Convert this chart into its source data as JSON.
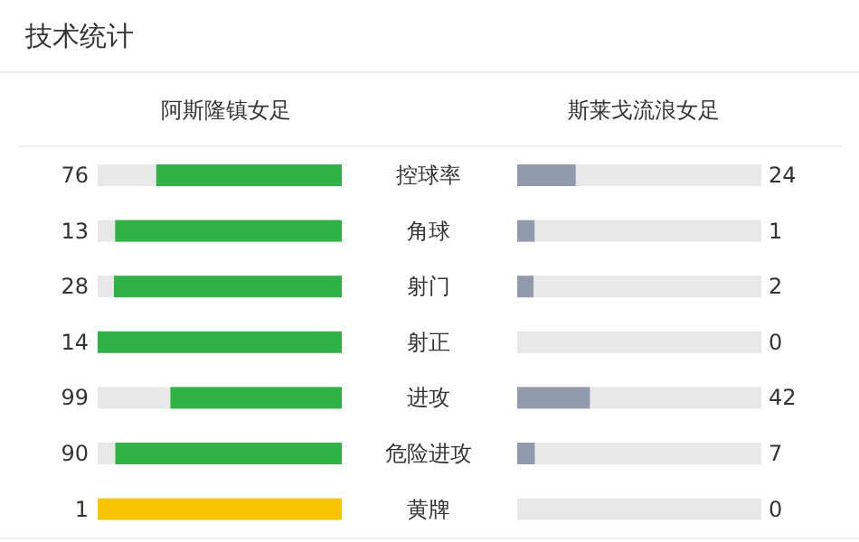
{
  "chart_data": {
    "type": "other",
    "data_labels": true,
    "title": "技术统计",
    "categories": [
      "控球率",
      "角球",
      "射门",
      "射正",
      "进攻",
      "危险进攻",
      "黄牌"
    ],
    "series": [
      {
        "name": "阿斯隆镇女足",
        "colors": [
          "#31b247",
          "#31b247",
          "#31b247",
          "#31b247",
          "#31b247",
          "#31b247",
          "#f7c600"
        ],
        "values": [
          76,
          13,
          28,
          14,
          99,
          90,
          1
        ]
      },
      {
        "name": "斯莱戈流浪女足",
        "colors": [
          "#929bad",
          "#929bad",
          "#929bad",
          null,
          "#929bad",
          "#929bad",
          null
        ],
        "values": [
          24,
          1,
          2,
          0,
          42,
          7,
          0
        ]
      }
    ]
  }
}
